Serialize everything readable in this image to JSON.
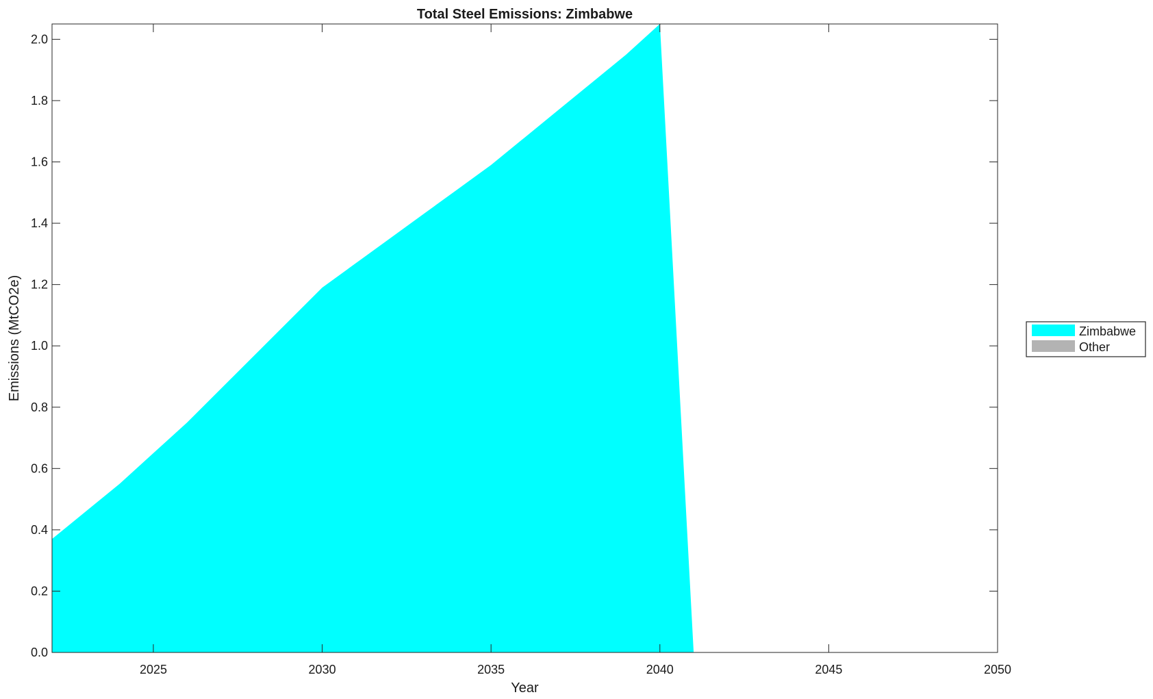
{
  "chart_data": {
    "type": "area",
    "title": "Total Steel Emissions: Zimbabwe",
    "xlabel": "Year",
    "ylabel": "Emissions (MtCO2e)",
    "xlim": [
      2022,
      2050
    ],
    "ylim": [
      0,
      2.05
    ],
    "xticks": [
      2025,
      2030,
      2035,
      2040,
      2045,
      2050
    ],
    "yticks": [
      0.0,
      0.2,
      0.4,
      0.6,
      0.8,
      1.0,
      1.2,
      1.4,
      1.6,
      1.8,
      2.0
    ],
    "grid": false,
    "legend_placement": "right-outside",
    "x": [
      2022,
      2023,
      2024,
      2025,
      2026,
      2027,
      2028,
      2029,
      2030,
      2031,
      2032,
      2033,
      2034,
      2035,
      2036,
      2037,
      2038,
      2039,
      2040,
      2041,
      2042,
      2043,
      2044,
      2045,
      2046,
      2047,
      2048,
      2049,
      2050
    ],
    "series": [
      {
        "name": "Zimbabwe",
        "color": "#00ffff",
        "values": [
          0.37,
          0.46,
          0.55,
          0.65,
          0.75,
          0.86,
          0.97,
          1.08,
          1.19,
          1.27,
          1.35,
          1.43,
          1.51,
          1.59,
          1.68,
          1.77,
          1.86,
          1.95,
          2.05,
          0,
          0,
          0,
          0,
          0,
          0,
          0,
          0,
          0,
          0
        ]
      },
      {
        "name": "Other",
        "color": "#b3b3b3",
        "values": [
          0,
          0,
          0,
          0,
          0,
          0,
          0,
          0,
          0,
          0,
          0,
          0,
          0,
          0,
          0,
          0,
          0,
          0,
          0,
          0,
          0,
          0,
          0,
          0,
          0,
          0,
          0,
          0,
          0
        ]
      }
    ]
  }
}
